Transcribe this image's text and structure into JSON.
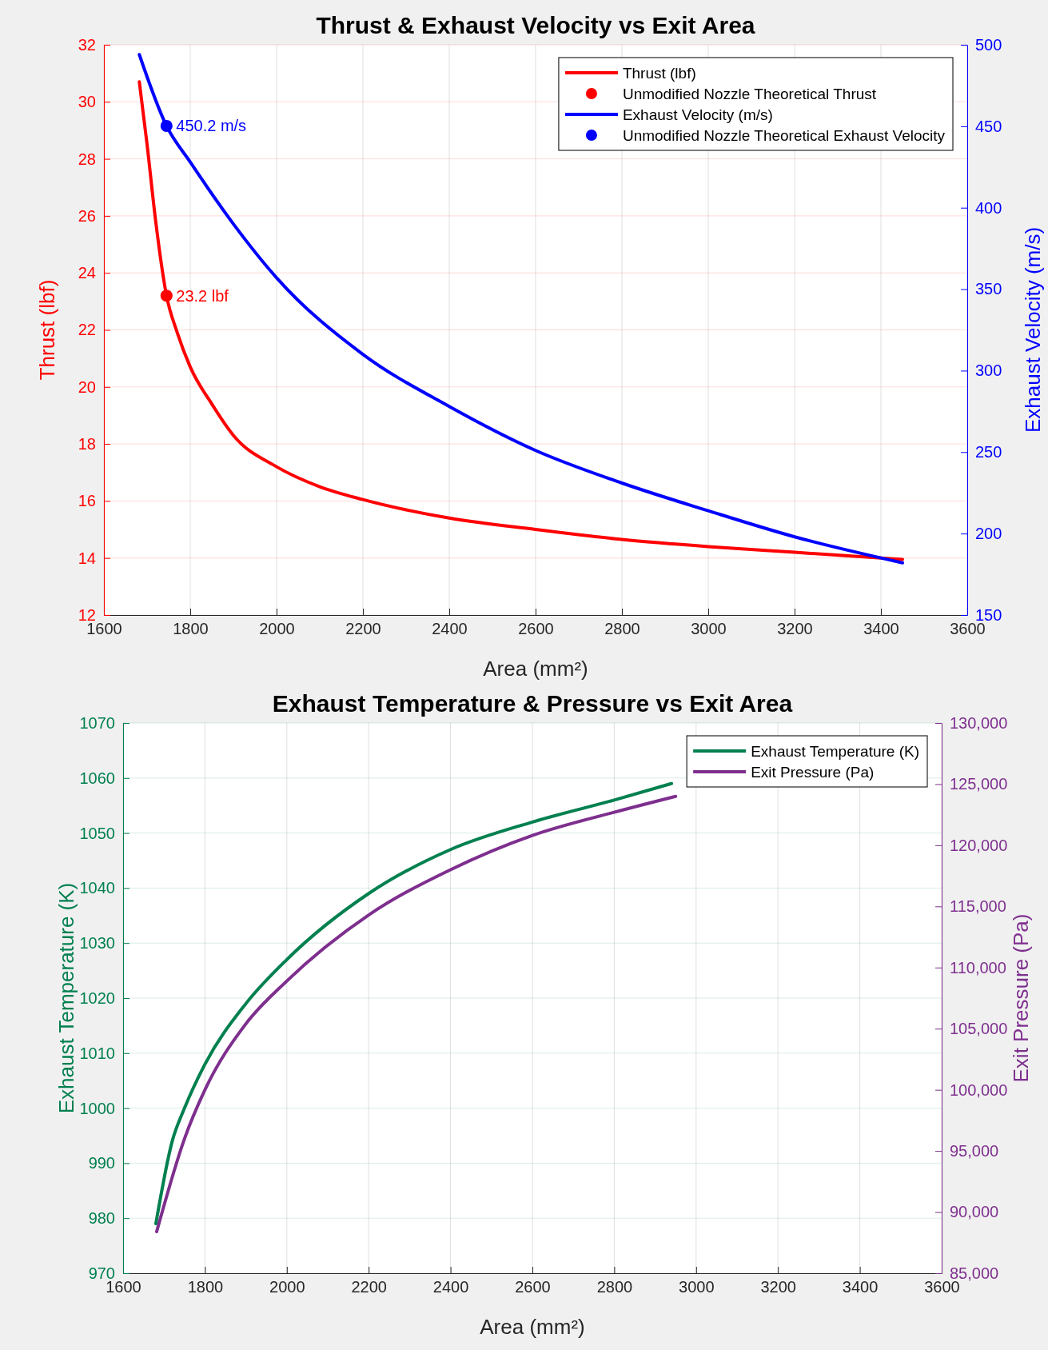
{
  "chart_data": [
    {
      "type": "line",
      "title": "Thrust & Exhaust Velocity vs Exit Area",
      "xlabel": "Area (mm²)",
      "ylabel": "Thrust (lbf)",
      "y2label": "Exhaust Velocity (m/s)",
      "xlim": [
        1600,
        3600
      ],
      "xticks": [
        1600,
        1800,
        2000,
        2200,
        2400,
        2600,
        2800,
        3000,
        3200,
        3400,
        3600
      ],
      "ylim": [
        12,
        32
      ],
      "yticks": [
        12,
        14,
        16,
        18,
        20,
        22,
        24,
        26,
        28,
        30,
        32
      ],
      "y2lim": [
        150,
        500
      ],
      "y2ticks": [
        150,
        200,
        250,
        300,
        350,
        400,
        450,
        500
      ],
      "grid": true,
      "legend": "top right",
      "series": [
        {
          "name": "Thrust (lbf)",
          "color": "#ff0000",
          "x": [
            1682,
            1700,
            1720,
            1745,
            1770,
            1800,
            1850,
            1900,
            2000,
            2100,
            2200,
            2400,
            2600,
            2800,
            3000,
            3200,
            3450
          ],
          "values": [
            30.7,
            28.5,
            25.8,
            23.2,
            21.9,
            20.7,
            19.4,
            18.3,
            17.2,
            16.5,
            16.05,
            15.4,
            15.0,
            14.65,
            14.4,
            14.2,
            13.95
          ]
        },
        {
          "name": "Unmodified Nozzle Theoretical Thrust",
          "type": "scatter",
          "marker": "circle",
          "color": "#ff0000",
          "x": [
            1745
          ],
          "values": [
            23.2
          ],
          "value_labels": [
            "23.2 lbf"
          ]
        },
        {
          "name": "Exhaust Velocity (m/s)",
          "axis": "y2",
          "color": "#0000ff",
          "x": [
            1682,
            1745,
            1800,
            1900,
            2000,
            2200,
            2400,
            2600,
            2800,
            3000,
            3200,
            3450
          ],
          "values": [
            494,
            450.2,
            428,
            390,
            357,
            310,
            278,
            251,
            231,
            214,
            198,
            182
          ]
        },
        {
          "name": "Unmodified Nozzle Theoretical Exhaust Velocity",
          "type": "scatter",
          "marker": "circle",
          "axis": "y2",
          "color": "#0000ff",
          "x": [
            1745
          ],
          "values": [
            450.2
          ],
          "value_labels": [
            "450.2 m/s"
          ]
        }
      ]
    },
    {
      "type": "line",
      "title": "Exhaust Temperature & Pressure vs Exit Area",
      "xlabel": "Area (mm²)",
      "ylabel": "Exhaust Temperature (K)",
      "y2label": "Exit Pressure (Pa)",
      "xlim": [
        1600,
        3600
      ],
      "xticks": [
        1600,
        1800,
        2000,
        2200,
        2400,
        2600,
        2800,
        3000,
        3200,
        3400,
        3600
      ],
      "ylim": [
        970,
        1070
      ],
      "yticks": [
        970,
        980,
        990,
        1000,
        1010,
        1020,
        1030,
        1040,
        1050,
        1060,
        1070
      ],
      "y2lim": [
        85000,
        130000
      ],
      "y2ticks": [
        {
          "value": 85000,
          "label": "85,000"
        },
        {
          "value": 90000,
          "label": "90,000"
        },
        {
          "value": 95000,
          "label": "95,000"
        },
        {
          "value": 100000,
          "label": "100,000"
        },
        {
          "value": 105000,
          "label": "105,000"
        },
        {
          "value": 110000,
          "label": "110,000"
        },
        {
          "value": 115000,
          "label": "115,000"
        },
        {
          "value": 120000,
          "label": "120,000"
        },
        {
          "value": 125000,
          "label": "125,000"
        },
        {
          "value": 130000,
          "label": "130,000"
        }
      ],
      "grid": true,
      "legend": "top right",
      "series": [
        {
          "name": "Exhaust Temperature (K)",
          "color": "#00804f",
          "x": [
            1680,
            1720,
            1750,
            1800,
            1900,
            2000,
            2200,
            2400,
            2600,
            2800,
            2940
          ],
          "values": [
            979,
            994,
            1000,
            1008,
            1019,
            1027,
            1039,
            1047,
            1052,
            1056,
            1059
          ]
        },
        {
          "name": "Exit Pressure (Pa)",
          "axis": "y2",
          "color": "#7e2f8e",
          "x": [
            1682,
            1750,
            1800,
            1900,
            2000,
            2200,
            2400,
            2600,
            2800,
            2950
          ],
          "values": [
            88400,
            96000,
            100000,
            105400,
            108900,
            114300,
            118000,
            120800,
            122700,
            124000
          ]
        }
      ]
    }
  ]
}
